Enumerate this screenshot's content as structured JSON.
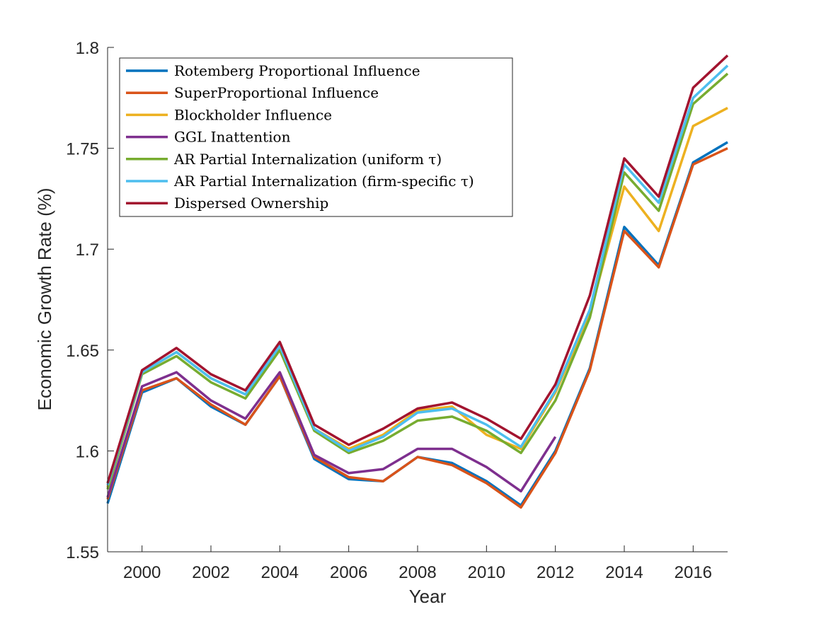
{
  "chart_data": {
    "type": "line",
    "title": "",
    "xlabel": "Year",
    "ylabel": "Economic Growth Rate (%)",
    "xlim": [
      1999,
      2017
    ],
    "ylim": [
      1.55,
      1.8
    ],
    "xticks": [
      2000,
      2002,
      2004,
      2006,
      2008,
      2010,
      2012,
      2014,
      2016
    ],
    "yticks": [
      1.55,
      1.6,
      1.65,
      1.7,
      1.75,
      1.8
    ],
    "ytick_labels": [
      "1.55",
      "1.6",
      "1.65",
      "1.7",
      "1.75",
      "1.8"
    ],
    "grid": false,
    "legend_position": "top-left",
    "series": [
      {
        "name": "Rotemberg Proportional Influence",
        "color": "#0072BD",
        "x": [
          1999,
          2000,
          2001,
          2002,
          2003,
          2004,
          2005,
          2006,
          2007,
          2008,
          2009,
          2010,
          2011,
          2012,
          2013,
          2014,
          2015,
          2016,
          2017
        ],
        "values": [
          1.574,
          1.629,
          1.636,
          1.622,
          1.613,
          1.637,
          1.596,
          1.586,
          1.585,
          1.597,
          1.594,
          1.585,
          1.573,
          1.6,
          1.641,
          1.711,
          1.692,
          1.743,
          1.753
        ]
      },
      {
        "name": "SuperProportional Influence",
        "color": "#D95319",
        "x": [
          1999,
          2000,
          2001,
          2002,
          2003,
          2004,
          2005,
          2006,
          2007,
          2008,
          2009,
          2010,
          2011,
          2012,
          2013,
          2014,
          2015,
          2016,
          2017
        ],
        "values": [
          1.576,
          1.63,
          1.636,
          1.623,
          1.613,
          1.637,
          1.597,
          1.587,
          1.585,
          1.597,
          1.593,
          1.584,
          1.572,
          1.599,
          1.64,
          1.709,
          1.691,
          1.742,
          1.75
        ]
      },
      {
        "name": "Blockholder Influence",
        "color": "#EDB120",
        "x": [
          1999,
          2000,
          2001,
          2002,
          2003,
          2004,
          2005,
          2006,
          2007,
          2008,
          2009,
          2010,
          2011,
          2012,
          2013,
          2014,
          2015,
          2016,
          2017
        ],
        "values": [
          1.582,
          1.639,
          1.649,
          1.636,
          1.628,
          1.652,
          1.611,
          1.601,
          1.608,
          1.62,
          1.622,
          1.608,
          1.601,
          1.629,
          1.668,
          1.731,
          1.709,
          1.761,
          1.77
        ]
      },
      {
        "name": "GGL Inattention",
        "color": "#7E2F8E",
        "x": [
          1999,
          2000,
          2001,
          2002,
          2003,
          2004,
          2005,
          2006,
          2007,
          2008,
          2009,
          2010,
          2011,
          2012
        ],
        "values": [
          1.577,
          1.632,
          1.639,
          1.625,
          1.616,
          1.639,
          1.598,
          1.589,
          1.591,
          1.601,
          1.601,
          1.592,
          1.58,
          1.607
        ]
      },
      {
        "name": "AR Partial Internalization (uniform τ)",
        "color": "#77AC30",
        "x": [
          1999,
          2000,
          2001,
          2002,
          2003,
          2004,
          2005,
          2006,
          2007,
          2008,
          2009,
          2010,
          2011,
          2012,
          2013,
          2014,
          2015,
          2016,
          2017
        ],
        "values": [
          1.581,
          1.638,
          1.647,
          1.634,
          1.626,
          1.65,
          1.61,
          1.599,
          1.605,
          1.615,
          1.617,
          1.61,
          1.599,
          1.625,
          1.666,
          1.738,
          1.719,
          1.772,
          1.787
        ]
      },
      {
        "name": "AR Partial Internalization (firm-specific τ)",
        "color": "#4DBEEE",
        "x": [
          1999,
          2000,
          2001,
          2002,
          2003,
          2004,
          2005,
          2006,
          2007,
          2008,
          2009,
          2010,
          2011,
          2012,
          2013,
          2014,
          2015,
          2016,
          2017
        ],
        "values": [
          1.583,
          1.639,
          1.649,
          1.636,
          1.628,
          1.652,
          1.611,
          1.6,
          1.607,
          1.619,
          1.621,
          1.613,
          1.602,
          1.63,
          1.67,
          1.742,
          1.723,
          1.775,
          1.791
        ]
      },
      {
        "name": "Dispersed Ownership",
        "color": "#A2142F",
        "x": [
          1999,
          2000,
          2001,
          2002,
          2003,
          2004,
          2005,
          2006,
          2007,
          2008,
          2009,
          2010,
          2011,
          2012,
          2013,
          2014,
          2015,
          2016,
          2017
        ],
        "values": [
          1.584,
          1.64,
          1.651,
          1.638,
          1.63,
          1.654,
          1.613,
          1.603,
          1.611,
          1.621,
          1.624,
          1.616,
          1.606,
          1.633,
          1.677,
          1.745,
          1.726,
          1.78,
          1.796
        ]
      }
    ]
  }
}
